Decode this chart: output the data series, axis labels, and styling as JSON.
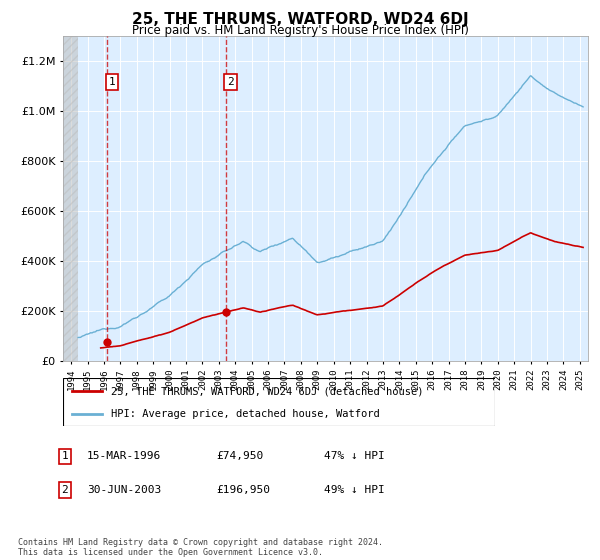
{
  "title": "25, THE THRUMS, WATFORD, WD24 6DJ",
  "subtitle": "Price paid vs. HM Land Registry's House Price Index (HPI)",
  "transactions": [
    {
      "date": "1996-03-15",
      "price": 74950,
      "label": "1"
    },
    {
      "date": "2003-06-30",
      "price": 196950,
      "label": "2"
    }
  ],
  "legend_entries": [
    "25, THE THRUMS, WATFORD, WD24 6DJ (detached house)",
    "HPI: Average price, detached house, Watford"
  ],
  "table_rows": [
    {
      "num": "1",
      "date": "15-MAR-1996",
      "price": "£74,950",
      "pct": "47% ↓ HPI"
    },
    {
      "num": "2",
      "date": "30-JUN-2003",
      "price": "£196,950",
      "pct": "49% ↓ HPI"
    }
  ],
  "footer": "Contains HM Land Registry data © Crown copyright and database right 2024.\nThis data is licensed under the Open Government Licence v3.0.",
  "hpi_color": "#6ab0d4",
  "price_color": "#cc0000",
  "background_plot": "#ddeeff",
  "ylim": [
    0,
    1300000
  ],
  "yticks": [
    0,
    200000,
    400000,
    600000,
    800000,
    1000000,
    1200000
  ],
  "xlim_start": 1993.5,
  "xlim_end": 2025.5,
  "hatch_end": 1994.42
}
